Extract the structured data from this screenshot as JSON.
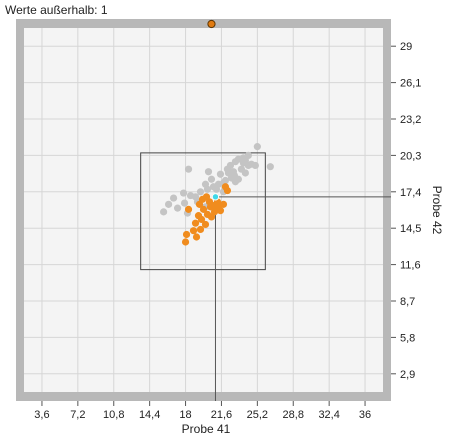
{
  "info_label": "Werte außerhalb: 1",
  "colors": {
    "frame": "#b8b8b8",
    "plot_bg": "#f4f4f4",
    "grid": "#d6d6d6",
    "background_points": "#c4c4c4",
    "highlight_points": "#f08c1e",
    "outlier_marker": "#e07a10",
    "selected_point": "#40d8e8",
    "crosshair": "#555555",
    "selection_box": "#444444"
  },
  "chart_data": {
    "type": "scatter",
    "xlabel": "Probe 41",
    "ylabel": "Probe 42",
    "xlim": [
      1.8,
      37.8
    ],
    "ylim": [
      1.45,
      30.45
    ],
    "x_ticks": [
      "3,6",
      "7,2",
      "10,8",
      "14,4",
      "18",
      "21,6",
      "25,2",
      "28,8",
      "32,4",
      "36"
    ],
    "y_ticks": [
      "2,9",
      "5,8",
      "8,7",
      "11,6",
      "14,5",
      "17,4",
      "20,3",
      "23,2",
      "26,1",
      "29"
    ],
    "grid": true,
    "selection_box": {
      "x": [
        13.5,
        26.0
      ],
      "y": [
        11.2,
        20.5
      ]
    },
    "crosshair": {
      "x": 21.0,
      "y": 17.0
    },
    "selected_point": {
      "x": 21.0,
      "y": 17.0
    },
    "outliers": [
      {
        "x": 20.6,
        "y": 30.2
      }
    ],
    "series": [
      {
        "points": [
          [
            25.2,
            21.0
          ],
          [
            26.5,
            19.4
          ],
          [
            25.0,
            19.5
          ],
          [
            23.8,
            20.1
          ],
          [
            22.3,
            18.9
          ],
          [
            23.0,
            19.8
          ],
          [
            24.3,
            19.5
          ],
          [
            23.6,
            19.2
          ],
          [
            22.9,
            18.7
          ],
          [
            23.3,
            18.4
          ],
          [
            24.0,
            18.9
          ],
          [
            24.6,
            19.6
          ],
          [
            22.0,
            18.3
          ],
          [
            22.6,
            18.5
          ],
          [
            21.3,
            18.0
          ],
          [
            23.8,
            19.7
          ],
          [
            22.5,
            19.5
          ],
          [
            21.8,
            18.1
          ],
          [
            20.6,
            18.4
          ],
          [
            20.0,
            18.0
          ],
          [
            19.5,
            17.4
          ],
          [
            19.0,
            17.0
          ],
          [
            18.5,
            17.1
          ],
          [
            17.8,
            17.3
          ],
          [
            16.8,
            16.9
          ],
          [
            16.3,
            16.4
          ],
          [
            15.8,
            15.8
          ],
          [
            17.2,
            16.1
          ],
          [
            20.2,
            17.6
          ],
          [
            21.1,
            17.6
          ],
          [
            20.3,
            19.0
          ],
          [
            18.3,
            19.2
          ],
          [
            22.8,
            19.0
          ],
          [
            24.0,
            19.9
          ],
          [
            23.0,
            18.2
          ],
          [
            21.8,
            17.4
          ],
          [
            20.8,
            17.8
          ],
          [
            19.2,
            16.6
          ],
          [
            17.9,
            16.5
          ],
          [
            23.3,
            20.0
          ],
          [
            24.3,
            20.3
          ],
          [
            21.5,
            18.8
          ],
          [
            22.2,
            19.2
          ],
          [
            18.2,
            15.7
          ],
          [
            20.0,
            16.2
          ]
        ]
      },
      {
        "points": [
          [
            21.0,
            17.0
          ],
          [
            22.0,
            17.8
          ],
          [
            21.2,
            16.6
          ],
          [
            20.5,
            16.2
          ],
          [
            19.8,
            16.0
          ],
          [
            20.2,
            15.6
          ],
          [
            19.6,
            15.2
          ],
          [
            20.6,
            15.4
          ],
          [
            21.5,
            15.9
          ],
          [
            21.8,
            16.4
          ],
          [
            19.0,
            14.9
          ],
          [
            20.0,
            14.8
          ],
          [
            18.8,
            14.3
          ],
          [
            19.1,
            13.8
          ],
          [
            18.1,
            14.0
          ],
          [
            18.0,
            13.4
          ],
          [
            18.3,
            16.0
          ],
          [
            19.4,
            16.4
          ],
          [
            20.9,
            15.8
          ],
          [
            19.3,
            15.5
          ],
          [
            20.4,
            16.6
          ],
          [
            19.7,
            16.8
          ],
          [
            20.8,
            16.3
          ],
          [
            19.5,
            14.4
          ],
          [
            21.3,
            16.2
          ],
          [
            22.2,
            17.5
          ],
          [
            20.1,
            17.0
          ]
        ]
      }
    ]
  }
}
